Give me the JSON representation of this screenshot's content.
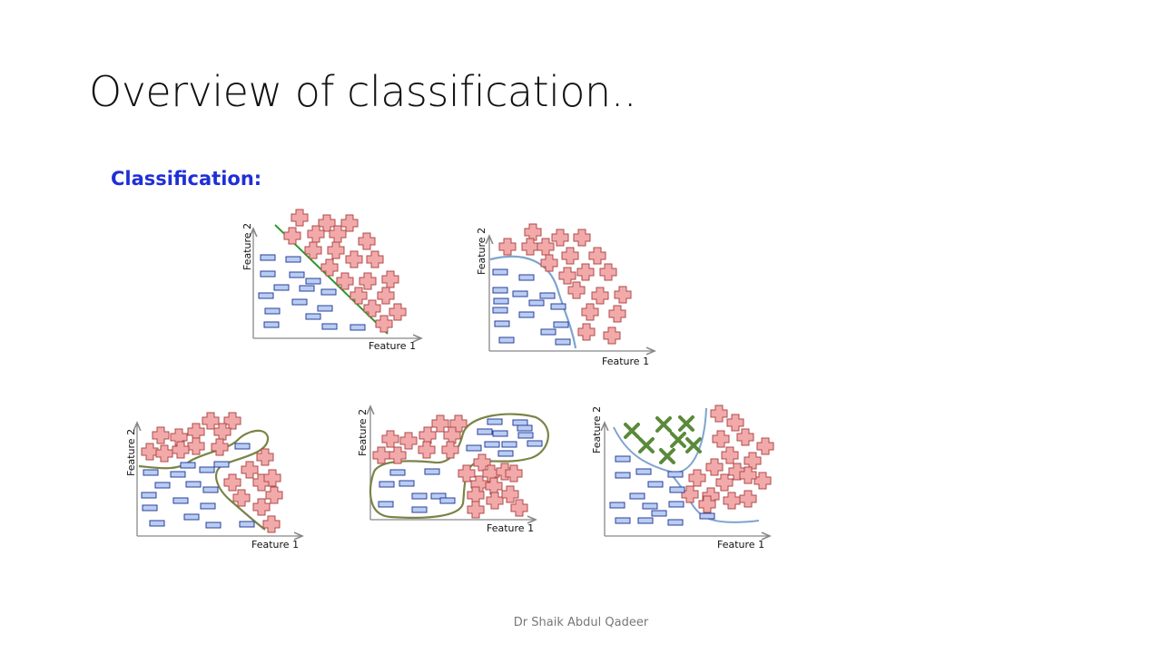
{
  "slide": {
    "title": "Overview of classification..",
    "section_label": "Classification:",
    "footer": "Dr Shaik Abdul Qadeer"
  },
  "axes": {
    "x_label": "Feature 1",
    "y_label": "Feature 2"
  },
  "colors": {
    "title": "#111111",
    "section_label": "#1f2fd6",
    "plus_fill": "#f2a9a9",
    "plus_stroke": "#b04a4a",
    "minus_fill": "#b9cdf3",
    "minus_stroke": "#2a3f9a",
    "linear_boundary": "#2e9a2e",
    "curved_boundary": "#7ea4cf",
    "overfit_boundary": "#7a8446",
    "x_marker": "#5a8a3a"
  },
  "panels": [
    {
      "id": "linear",
      "boundary": "straight line"
    },
    {
      "id": "curved",
      "boundary": "smooth curve"
    },
    {
      "id": "complex",
      "boundary": "wiggly closed curve"
    },
    {
      "id": "overfit",
      "boundary": "two closed regions"
    },
    {
      "id": "unknown-points",
      "boundary": "smooth curves",
      "marker": "x"
    }
  ]
}
